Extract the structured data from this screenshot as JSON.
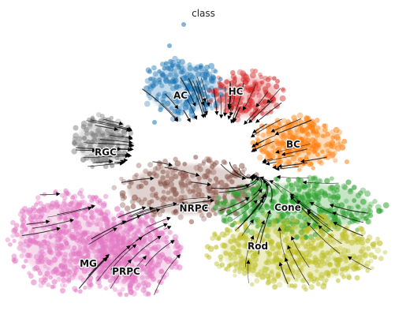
{
  "chart_data": {
    "type": "scatter",
    "title": "class",
    "xlabel": "",
    "ylabel": "",
    "grid": false,
    "legend": "on data",
    "overlay": "velocity streamlines with arrowheads",
    "series": [
      {
        "name": "AC",
        "color": "#1f77b4"
      },
      {
        "name": "HC",
        "color": "#d62728"
      },
      {
        "name": "BC",
        "color": "#ff7f0e"
      },
      {
        "name": "RGC",
        "color": "#7f7f7f"
      },
      {
        "name": "NRPC",
        "color": "#8c564b"
      },
      {
        "name": "Cone",
        "color": "#2ca02c"
      },
      {
        "name": "Rod",
        "color": "#bcbd22"
      },
      {
        "name": "MG",
        "color": "#e377c2"
      },
      {
        "name": "PRPC",
        "color": "#e377c2"
      }
    ]
  }
}
